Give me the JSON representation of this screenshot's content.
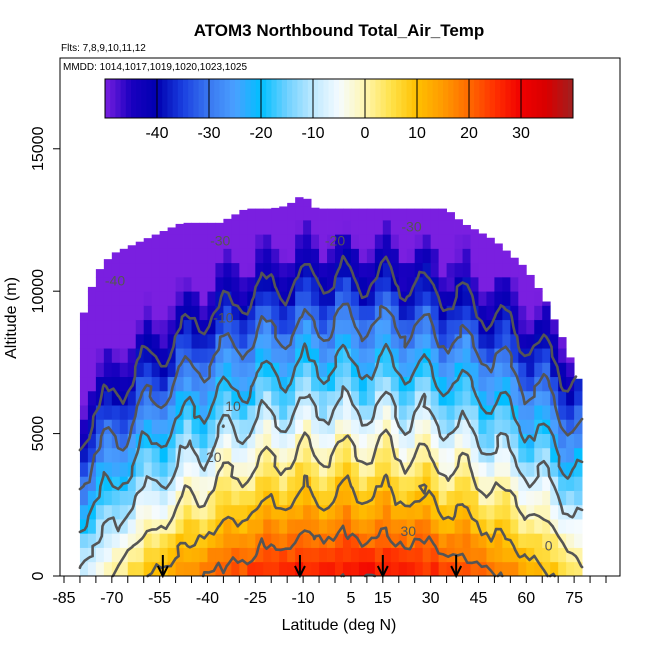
{
  "chart_data": {
    "type": "heatmap",
    "title": "ATOM3 Northbound Total_Air_Temp",
    "flights_note": "Flts: 7,8,9,10,11,12",
    "mmdd_note": "MMDD: 1014,1017,1019,1020,1023,1025",
    "xlabel": "Latitude (deg N)",
    "ylabel": "Altitude (m)",
    "xlim": [
      -85,
      85
    ],
    "ylim": [
      0,
      17500
    ],
    "x_ticks": [
      -85,
      -70,
      -55,
      -40,
      -25,
      -10,
      5,
      15,
      30,
      45,
      60,
      75
    ],
    "x_tick_labels": [
      "-85",
      "-70",
      "-55",
      "-40",
      "-25",
      "-10",
      "5",
      "15",
      "30",
      "45",
      "60",
      "75"
    ],
    "y_ticks": [
      0,
      5000,
      10000,
      15000
    ],
    "y_tick_labels": [
      "0",
      "5000",
      "10000",
      "15000"
    ],
    "colorbar": {
      "range": [
        -50,
        40
      ],
      "ticks": [
        -40,
        -30,
        -20,
        -10,
        0,
        10,
        20,
        30
      ],
      "tick_labels": [
        "-40",
        "-30",
        "-20",
        "-10",
        "0",
        "10",
        "20",
        "30"
      ],
      "palette": [
        "#7a1fe0",
        "#1a00c0",
        "#0000b0",
        "#1a3fe0",
        "#3a78f0",
        "#4aa0ff",
        "#00bfff",
        "#6fd0ff",
        "#bde9ff",
        "#f5fbff",
        "#fff6b0",
        "#ffe24a",
        "#ffc000",
        "#ff9a00",
        "#ff6a00",
        "#ff3000",
        "#f00000",
        "#d80000",
        "#a02020"
      ]
    },
    "contour_levels": [
      -40,
      -30,
      -20,
      -10,
      0,
      10,
      20,
      30
    ],
    "contour_labels": [
      {
        "text": "-40",
        "lat": -69,
        "alt": 10200
      },
      {
        "text": "-30",
        "lat": -36,
        "alt": 11600
      },
      {
        "text": "-20",
        "lat": 0,
        "alt": 11600
      },
      {
        "text": "-30",
        "lat": 24,
        "alt": 12100
      },
      {
        "text": "-10",
        "lat": -35,
        "alt": 8900
      },
      {
        "text": "10",
        "lat": -32,
        "alt": 5800
      },
      {
        "text": "20",
        "lat": -38,
        "alt": 4000
      },
      {
        "text": "30",
        "lat": 23,
        "alt": 1400
      },
      {
        "text": "0",
        "lat": 67,
        "alt": 900
      }
    ],
    "envelope_top_alt": [
      [
        -80,
        8800
      ],
      [
        -75,
        10600
      ],
      [
        -70,
        11300
      ],
      [
        -60,
        11800
      ],
      [
        -48,
        12400
      ],
      [
        -36,
        12400
      ],
      [
        -28,
        12900
      ],
      [
        -20,
        12900
      ],
      [
        -15,
        13000
      ],
      [
        -10,
        13400
      ],
      [
        -6,
        12900
      ],
      [
        5,
        12900
      ],
      [
        20,
        12900
      ],
      [
        35,
        12900
      ],
      [
        40,
        12400
      ],
      [
        50,
        11800
      ],
      [
        60,
        10800
      ],
      [
        66,
        9700
      ],
      [
        72,
        8200
      ],
      [
        78,
        6400
      ]
    ],
    "profile_arrows_lat": [
      -54,
      -11,
      15,
      38
    ]
  }
}
